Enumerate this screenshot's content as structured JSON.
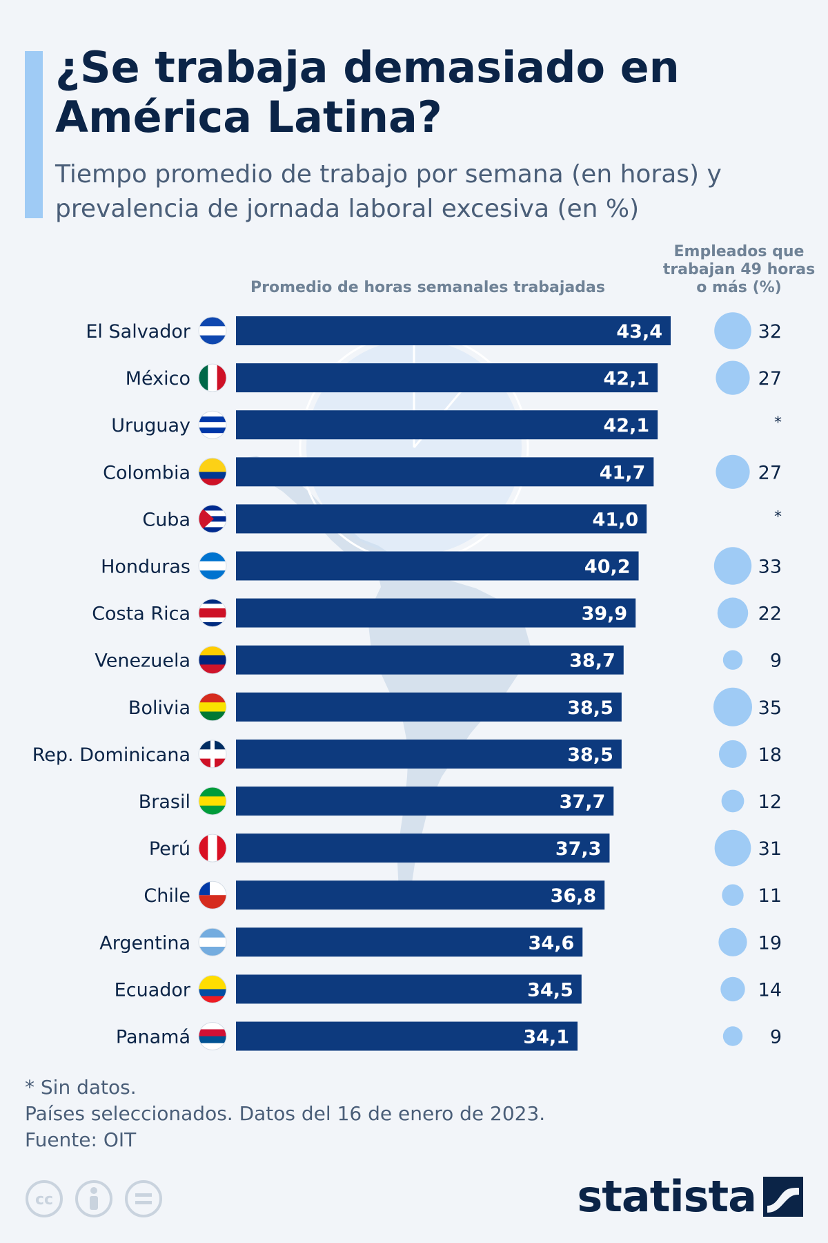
{
  "title": "¿Se trabaja demasiado en América Latina?",
  "subtitle": "Tiempo promedio de trabajo por semana (en horas) y prevalencia de jornada laboral excesiva (en %)",
  "colors": {
    "bar": "#0d3a7e",
    "bubble": "#9fcbf5",
    "accent": "#9fcbf5",
    "text": "#0b2447",
    "muted": "#4a5e78",
    "background": "#f2f5f9"
  },
  "chart_data": {
    "type": "bar",
    "orientation": "horizontal",
    "bar_header": "Promedio de horas semanales trabajadas",
    "bubble_header": "Empleados que trabajan 49 horas o más (%)",
    "missing_marker": "*",
    "xlim": [
      0,
      43.4
    ],
    "categories": [
      "El Salvador",
      "México",
      "Uruguay",
      "Colombia",
      "Cuba",
      "Honduras",
      "Costa Rica",
      "Venezuela",
      "Bolivia",
      "Rep. Dominicana",
      "Brasil",
      "Perú",
      "Chile",
      "Argentina",
      "Ecuador",
      "Panamá"
    ],
    "series": [
      {
        "name": "Promedio de horas semanales trabajadas",
        "values": [
          43.4,
          42.1,
          42.1,
          41.7,
          41.0,
          40.2,
          39.9,
          38.7,
          38.5,
          38.5,
          37.7,
          37.3,
          36.8,
          34.6,
          34.5,
          34.1
        ],
        "labels": [
          "43,4",
          "42,1",
          "42,1",
          "41,7",
          "41,0",
          "40,2",
          "39,9",
          "38,7",
          "38,5",
          "38,5",
          "37,7",
          "37,3",
          "36,8",
          "34,6",
          "34,5",
          "34,1"
        ]
      },
      {
        "name": "Empleados que trabajan 49 horas o más (%)",
        "values": [
          32,
          27,
          null,
          27,
          null,
          33,
          22,
          9,
          35,
          18,
          12,
          31,
          11,
          19,
          14,
          9
        ]
      }
    ],
    "flags": [
      "flag-el-salvador",
      "flag-mexico",
      "flag-uruguay",
      "flag-colombia",
      "flag-cuba",
      "flag-honduras",
      "flag-costa-rica",
      "flag-venezuela",
      "flag-bolivia",
      "flag-dominican-republic",
      "flag-brazil",
      "flag-peru",
      "flag-chile",
      "flag-argentina",
      "flag-ecuador",
      "flag-panama"
    ]
  },
  "footnotes": {
    "no_data": "* Sin datos.",
    "note": "Países seleccionados. Datos del 16 de enero de 2023.",
    "source": "Fuente: OIT"
  },
  "branding": {
    "logo_text": "statista",
    "license_icons": [
      "cc-icon",
      "attribution-icon",
      "no-derivatives-icon"
    ]
  }
}
